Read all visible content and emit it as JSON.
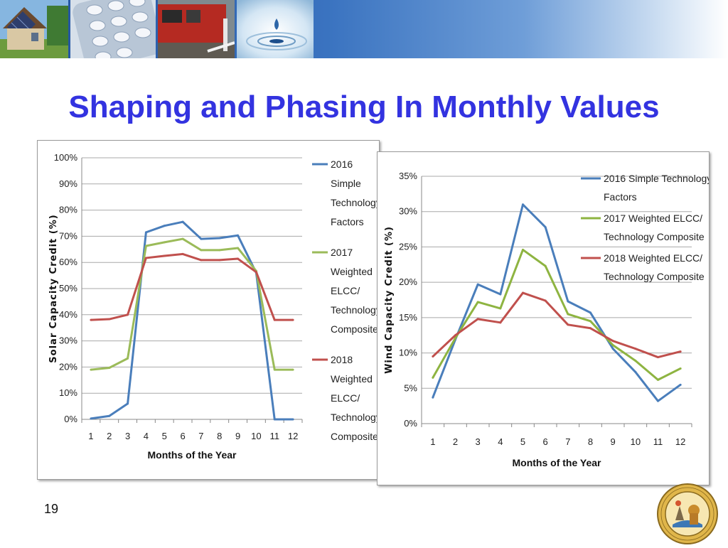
{
  "slide": {
    "title": "Shaping and Phasing In Monthly Values",
    "page_number": "19",
    "seal_text": "PUBLIC UTILITIES COMMISSION · STATE OF CALIFORNIA"
  },
  "colors": {
    "title": "#3333e0",
    "series_2016": "#4a7ebb",
    "series_2017": "#8eb441",
    "series_2018": "#c0504d",
    "series_2017_solar": "#9bbb59"
  },
  "chart_data": [
    {
      "type": "line",
      "id": "solar",
      "ylabel": "Solar Capacity Credit (%)",
      "xlabel": "Months of the Year",
      "x": [
        1,
        2,
        3,
        4,
        5,
        6,
        7,
        8,
        9,
        10,
        11,
        12
      ],
      "ylim": [
        0,
        100
      ],
      "yticks": [
        "0%",
        "10%",
        "20%",
        "30%",
        "40%",
        "50%",
        "60%",
        "70%",
        "80%",
        "90%",
        "100%"
      ],
      "grid": true,
      "legend": "right",
      "series": [
        {
          "name": "2016 Simple Technology Factors",
          "legend_lines": [
            "2016",
            "Simple",
            "Technology",
            "Factors"
          ],
          "values": [
            0.3,
            1.3,
            6.0,
            71.5,
            74,
            75.5,
            69,
            69.3,
            70.3,
            56,
            0,
            0
          ]
        },
        {
          "name": "2017 Weighted ELCC/ Technology Composite",
          "legend_lines": [
            "2017",
            "Weighted",
            "ELCC/",
            "Technology",
            "Composite"
          ],
          "values": [
            19,
            19.7,
            23.3,
            66.3,
            67.7,
            69,
            64.7,
            64.7,
            65.5,
            56.7,
            19,
            19
          ]
        },
        {
          "name": "2018 Weighted ELCC/ Technology Composite",
          "legend_lines": [
            "2018",
            "Weighted",
            "ELCC/",
            "Technology",
            "Composite"
          ],
          "values": [
            38,
            38.3,
            40,
            61.7,
            62.5,
            63.2,
            60.9,
            60.9,
            61.4,
            56.3,
            38,
            38
          ]
        }
      ]
    },
    {
      "type": "line",
      "id": "wind",
      "ylabel": "Wind Capacity Credit (%)",
      "xlabel": "Months of the Year",
      "x": [
        1,
        2,
        3,
        4,
        5,
        6,
        7,
        8,
        9,
        10,
        11,
        12
      ],
      "ylim": [
        0,
        35
      ],
      "yticks": [
        "0%",
        "5%",
        "10%",
        "15%",
        "20%",
        "25%",
        "30%",
        "35%"
      ],
      "grid": true,
      "legend": "top-right",
      "series": [
        {
          "name": "2016 Simple Technology Factors",
          "legend_lines": [
            "2016 Simple Technology",
            "Factors"
          ],
          "values": [
            3.7,
            11.9,
            19.7,
            18.3,
            31,
            27.8,
            17.3,
            15.7,
            10.6,
            7.3,
            3.2,
            5.5
          ]
        },
        {
          "name": "2017 Weighted ELCC/ Technology Composite",
          "legend_lines": [
            "2017 Weighted ELCC/",
            "Technology Composite"
          ],
          "values": [
            6.5,
            12.1,
            17.2,
            16.3,
            24.6,
            22.3,
            15.5,
            14.5,
            11.1,
            8.9,
            6.2,
            7.8
          ]
        },
        {
          "name": "2018 Weighted ELCC/ Technology Composite",
          "legend_lines": [
            "2018 Weighted ELCC/",
            "Technology Composite"
          ],
          "values": [
            9.5,
            12.5,
            14.8,
            14.3,
            18.5,
            17.4,
            14,
            13.5,
            11.7,
            10.6,
            9.4,
            10.2
          ]
        }
      ]
    }
  ]
}
